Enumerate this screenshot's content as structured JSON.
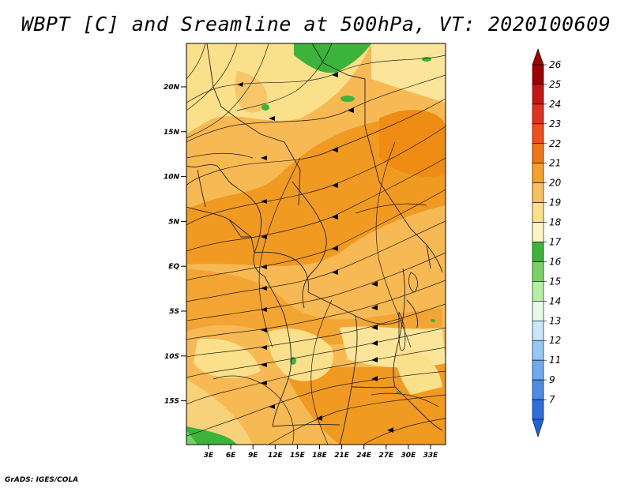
{
  "title": "WBPT [C] and Sreamline at 500hPa, VT: 2020100609",
  "footer": "GrADS: IGES/COLA",
  "map": {
    "lat_labels": [
      "20N",
      "15N",
      "10N",
      "5N",
      "EQ",
      "5S",
      "10S",
      "15S"
    ],
    "lon_labels": [
      "3E",
      "6E",
      "9E",
      "12E",
      "15E",
      "18E",
      "21E",
      "24E",
      "27E",
      "30E",
      "33E"
    ],
    "lon_range": [
      0,
      35
    ],
    "lat_range": [
      -19,
      23
    ]
  },
  "colorbar": {
    "levels": [
      "26",
      "25",
      "24",
      "23",
      "22",
      "21",
      "20",
      "19",
      "18",
      "17",
      "16",
      "15",
      "14",
      "13",
      "12",
      "11",
      "9",
      "7"
    ],
    "colors": [
      "#a00000",
      "#c81414",
      "#e03020",
      "#f05018",
      "#f07814",
      "#f5a028",
      "#f8c060",
      "#fae08a",
      "#fff5c0",
      "#3cb43c",
      "#78d264",
      "#b4f0a0",
      "#e6fae6",
      "#c8e6fa",
      "#96c8f5",
      "#6eaaf0",
      "#4a8ce6",
      "#2a6ee0"
    ],
    "top_color": "#a00000",
    "bottom_color": "#1e64dc"
  },
  "colors": {
    "base": "#f7b954",
    "warm": "#f19a22",
    "light": "#fae08a",
    "green": "#3cb43c"
  }
}
